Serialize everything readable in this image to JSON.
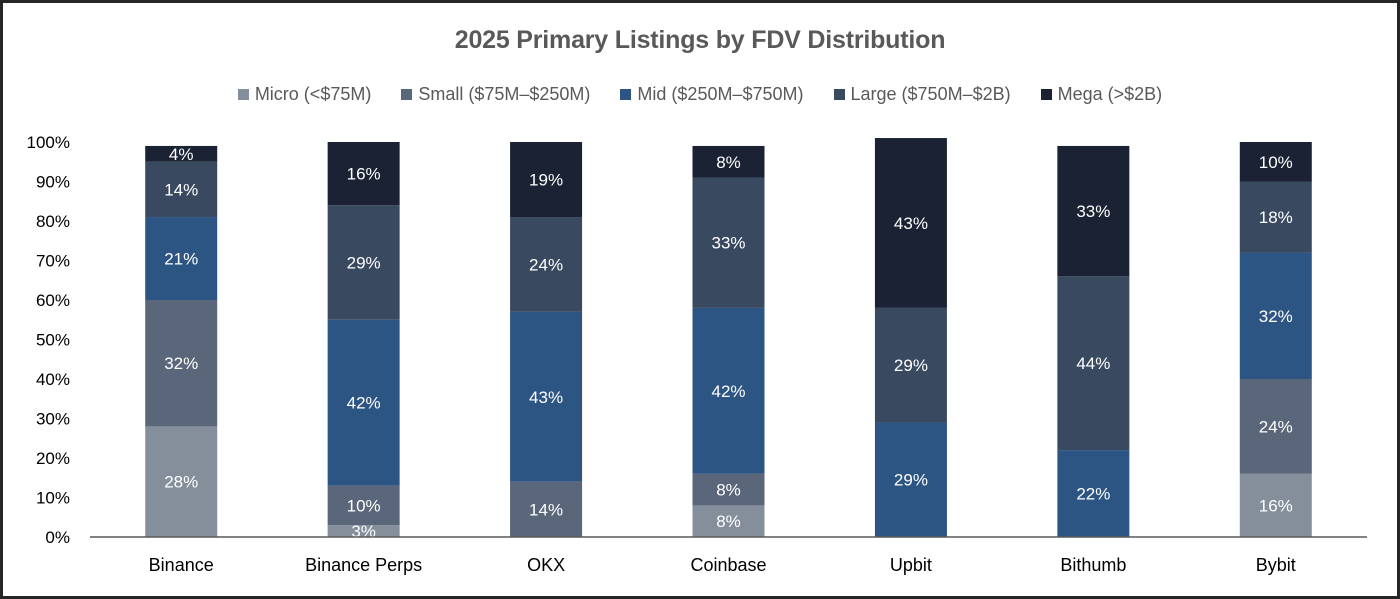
{
  "chart_data": {
    "type": "bar",
    "stacked": true,
    "title": "2025 Primary Listings by FDV Distribution",
    "xlabel": "",
    "ylabel": "",
    "ylim": [
      0,
      100
    ],
    "y_ticks": [
      "0%",
      "10%",
      "20%",
      "30%",
      "40%",
      "50%",
      "60%",
      "70%",
      "80%",
      "90%",
      "100%"
    ],
    "grid": false,
    "legend_position": "top",
    "categories": [
      "Binance",
      "Binance Perps",
      "OKX",
      "Coinbase",
      "Upbit",
      "Bithumb",
      "Bybit"
    ],
    "series": [
      {
        "name": "Micro (<$75M)",
        "color": "#848f9b",
        "values": [
          28,
          3,
          0,
          8,
          0,
          0,
          16
        ]
      },
      {
        "name": "Small ($75M–$250M)",
        "color": "#5a6679",
        "values": [
          32,
          10,
          14,
          8,
          0,
          0,
          24
        ]
      },
      {
        "name": "Mid ($250M–$750M)",
        "color": "#2d5584",
        "values": [
          21,
          42,
          43,
          42,
          29,
          22,
          32
        ]
      },
      {
        "name": "Large ($750M–$2B)",
        "color": "#394960",
        "values": [
          14,
          29,
          24,
          33,
          29,
          44,
          18
        ]
      },
      {
        "name": "Mega (>$2B)",
        "color": "#1b2233",
        "values": [
          4,
          16,
          19,
          8,
          43,
          33,
          10
        ]
      }
    ]
  }
}
